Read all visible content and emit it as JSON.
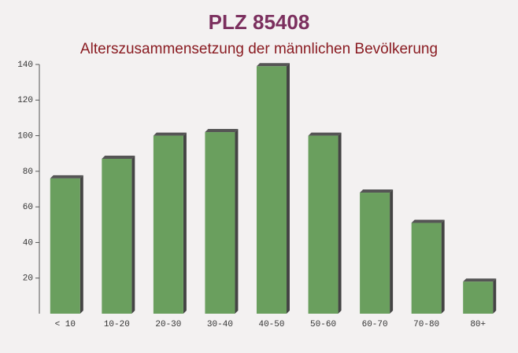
{
  "chart_data": {
    "type": "bar",
    "title": "PLZ 85408",
    "subtitle": "Alterszusammensetzung der männlichen Bevölkerung",
    "categories": [
      "< 10",
      "10-20",
      "20-30",
      "30-40",
      "40-50",
      "50-60",
      "60-70",
      "70-80",
      "80+"
    ],
    "values": [
      76,
      87,
      100,
      102,
      139,
      100,
      68,
      51,
      18
    ],
    "color": "#6a9f5e",
    "ylim": [
      0,
      140
    ],
    "yticks": [
      20,
      40,
      60,
      80,
      100,
      120,
      140
    ]
  }
}
